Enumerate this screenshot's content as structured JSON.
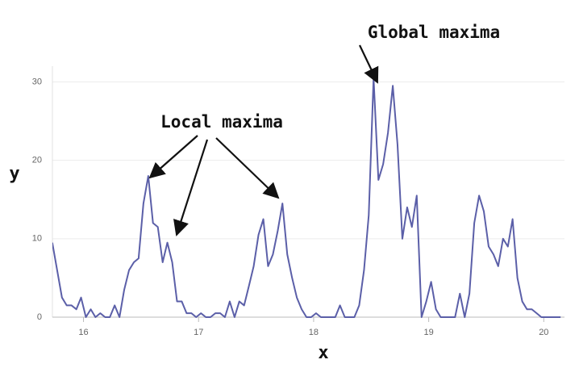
{
  "chart_data": {
    "type": "line",
    "xlabel": "x",
    "ylabel": "y",
    "annotations": [
      "Local maxima",
      "Global maxima"
    ],
    "xlim": [
      15.73,
      20.18
    ],
    "ylim": [
      0,
      32
    ],
    "xticks": [
      16,
      17,
      18,
      19,
      20
    ],
    "yticks": [
      0,
      10,
      20,
      30
    ],
    "grid": true,
    "series": [
      {
        "color": "#5b5fa8",
        "x": [
          15.729,
          15.771,
          15.813,
          15.854,
          15.896,
          15.938,
          15.979,
          16.021,
          16.063,
          16.104,
          16.146,
          16.188,
          16.229,
          16.271,
          16.313,
          16.354,
          16.396,
          16.438,
          16.479,
          16.521,
          16.563,
          16.604,
          16.646,
          16.688,
          16.729,
          16.771,
          16.813,
          16.854,
          16.896,
          16.938,
          16.979,
          17.021,
          17.063,
          17.104,
          17.146,
          17.188,
          17.229,
          17.271,
          17.313,
          17.354,
          17.396,
          17.438,
          17.479,
          17.521,
          17.563,
          17.604,
          17.646,
          17.688,
          17.729,
          17.771,
          17.813,
          17.854,
          17.896,
          17.938,
          17.979,
          18.021,
          18.063,
          18.104,
          18.146,
          18.188,
          18.229,
          18.271,
          18.313,
          18.354,
          18.396,
          18.438,
          18.479,
          18.521,
          18.563,
          18.604,
          18.646,
          18.688,
          18.729,
          18.771,
          18.813,
          18.854,
          18.896,
          18.938,
          18.979,
          19.021,
          19.063,
          19.104,
          19.146,
          19.188,
          19.229,
          19.271,
          19.313,
          19.354,
          19.396,
          19.438,
          19.479,
          19.521,
          19.563,
          19.604,
          19.646,
          19.688,
          19.729,
          19.771,
          19.813,
          19.854,
          19.896,
          19.938,
          19.979,
          20.021,
          20.063,
          20.104,
          20.146
        ],
        "values": [
          9.5,
          6,
          2.5,
          1.5,
          1.5,
          1,
          2.5,
          0,
          1,
          0,
          0.5,
          0,
          0,
          1.5,
          0,
          3.5,
          6,
          7,
          7.5,
          14.5,
          18,
          12,
          11.5,
          7,
          9.5,
          7,
          2,
          2,
          0.5,
          0.5,
          0,
          0.5,
          0,
          0,
          0.5,
          0.5,
          0,
          2,
          0,
          2,
          1.5,
          4,
          6.5,
          10.5,
          12.5,
          6.5,
          8,
          11,
          14.5,
          8,
          5,
          2.5,
          1,
          0,
          0,
          0.5,
          0,
          0,
          0,
          0,
          1.5,
          0,
          0,
          0,
          1.5,
          6,
          13,
          30.5,
          17.5,
          19.5,
          23.5,
          29.5,
          22,
          10,
          14,
          11.5,
          15.5,
          0,
          2,
          4.5,
          1,
          0,
          0,
          0,
          0,
          3,
          0,
          3,
          12,
          15.5,
          13.5,
          9,
          8,
          6.5,
          10,
          9,
          12.5,
          5,
          2,
          1,
          1,
          0.5,
          0,
          0,
          0,
          0,
          0
        ]
      }
    ]
  }
}
